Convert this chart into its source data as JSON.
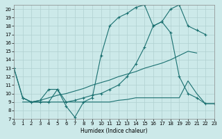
{
  "xlabel": "Humidex (Indice chaleur)",
  "background_color": "#cce9e9",
  "line_color": "#1a7070",
  "grid_color": "#b0d0d0",
  "xlim": [
    0,
    23
  ],
  "ylim": [
    7,
    20.5
  ],
  "xticks": [
    0,
    1,
    2,
    3,
    4,
    5,
    6,
    7,
    8,
    9,
    10,
    11,
    12,
    13,
    14,
    15,
    16,
    17,
    18,
    19,
    20,
    21,
    22,
    23
  ],
  "yticks": [
    7,
    8,
    9,
    10,
    11,
    12,
    13,
    14,
    15,
    16,
    17,
    18,
    19,
    20
  ],
  "line1_x": [
    0,
    1,
    2,
    3,
    4,
    5,
    6,
    7,
    8,
    9,
    10,
    11,
    12,
    13,
    14,
    15,
    16,
    17,
    18,
    19,
    20,
    21,
    22,
    23
  ],
  "line1_y": [
    13,
    9.5,
    9,
    9,
    9,
    10.5,
    8.5,
    7.2,
    9,
    9.5,
    14.5,
    18,
    19,
    19.5,
    20.2,
    20.5,
    18,
    18.5,
    17.2,
    12,
    10,
    9.5,
    8.8,
    8.8
  ],
  "line2_x": [
    0,
    1,
    2,
    3,
    4,
    5,
    6,
    7,
    8,
    9,
    10,
    11,
    12,
    13,
    14,
    15,
    16,
    17,
    18,
    19,
    20,
    21,
    22
  ],
  "line2_y": [
    13,
    9.5,
    9,
    9.2,
    10.5,
    10.5,
    9,
    9.2,
    9.5,
    9.8,
    10,
    10.5,
    11,
    12,
    13.5,
    15.5,
    18,
    18.5,
    20,
    20.5,
    18,
    17.5,
    17
  ],
  "line3_x": [
    1,
    2,
    3,
    4,
    5,
    6,
    7,
    8,
    9,
    10,
    11,
    12,
    13,
    14,
    15,
    16,
    17,
    18,
    19,
    20,
    21
  ],
  "line3_y": [
    9,
    9,
    9.2,
    9.5,
    9.8,
    10,
    10.3,
    10.6,
    11,
    11.3,
    11.6,
    12,
    12.3,
    12.6,
    13,
    13.3,
    13.6,
    14,
    14.5,
    15,
    14.8
  ],
  "line4_x": [
    1,
    2,
    3,
    4,
    5,
    6,
    7,
    8,
    9,
    10,
    11,
    12,
    13,
    14,
    15,
    16,
    17,
    18,
    19,
    20,
    21,
    22,
    23
  ],
  "line4_y": [
    9.5,
    9,
    9,
    9,
    9,
    9,
    9,
    9,
    9,
    9,
    9,
    9.2,
    9.3,
    9.5,
    9.5,
    9.5,
    9.5,
    9.5,
    9.5,
    11.5,
    10,
    8.8,
    8.8
  ]
}
